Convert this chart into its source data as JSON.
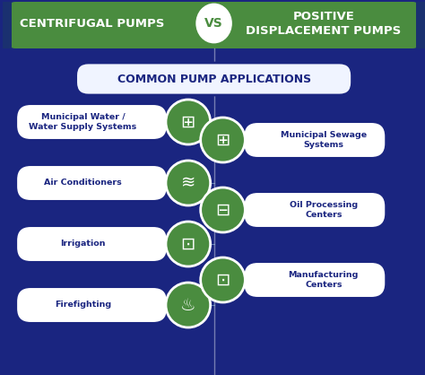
{
  "title_left": "CENTRIFUGAL PUMPS",
  "title_vs": "VS",
  "title_right": "POSITIVE\nDISPLACEMENT PUMPS",
  "subtitle": "COMMON PUMP APPLICATIONS",
  "left_items": [
    "Municipal Water /\nWater Supply Systems",
    "Air Conditioners",
    "Irrigation",
    "Firefighting"
  ],
  "right_items": [
    "Municipal Sewage\nSystems",
    "Oil Processing\nCenters",
    "Manufacturing\nCenters"
  ],
  "bg_color": "#1a2580",
  "header_green": "#4a8c3f",
  "header_dark_blue": "#1a2580",
  "pill_bg": "#ffffff",
  "pill_border": "#1a2580",
  "circle_green": "#4a8c3f",
  "circle_border": "#ffffff",
  "subtitle_bg": "#ffffff",
  "subtitle_border": "#1a2580",
  "text_dark": "#1a2580",
  "text_white": "#ffffff",
  "icon_faucet": "🚰",
  "icon_ac": "☃",
  "icon_irrigation": "🌱",
  "icon_fire": "🔥",
  "icon_sewage": "💧",
  "icon_oil": "🏭",
  "icon_factory": "🏭",
  "divider_color": "#4a8c3f",
  "header_accent": "#1a3070"
}
